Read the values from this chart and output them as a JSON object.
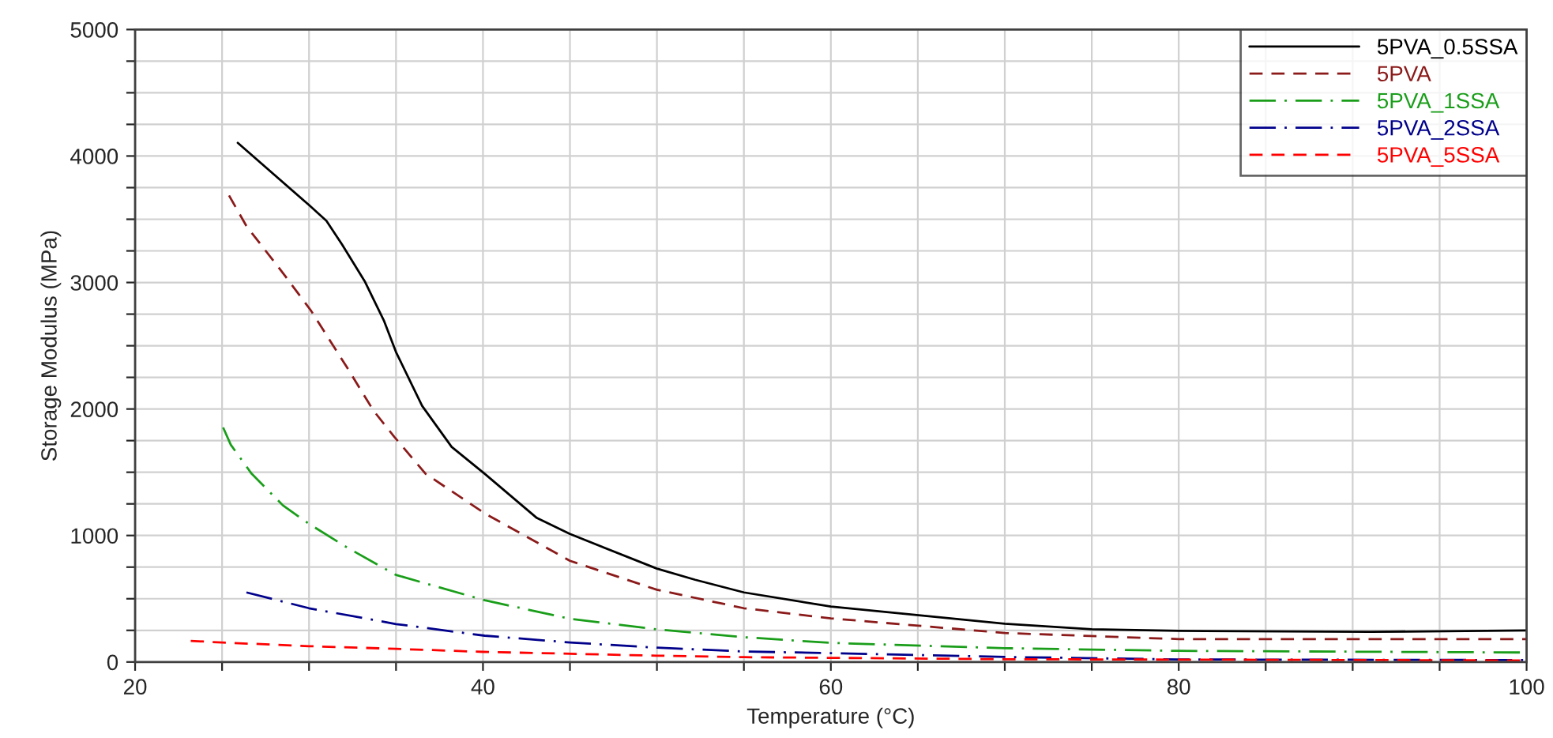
{
  "chart_data": {
    "type": "line",
    "xlabel": "Temperature (°C)",
    "ylabel": "Storage Modulus (MPa)",
    "xlim": [
      20,
      100
    ],
    "ylim": [
      0,
      5000
    ],
    "xticks": [
      20,
      {
        "value": 25,
        "label": null
      },
      {
        "value": 30,
        "label": null
      },
      {
        "value": 35,
        "label": null
      },
      40,
      {
        "value": 45,
        "label": null
      },
      {
        "value": 50,
        "label": null
      },
      {
        "value": 55,
        "label": null
      },
      60,
      {
        "value": 65,
        "label": null
      },
      {
        "value": 70,
        "label": null
      },
      {
        "value": 75,
        "label": null
      },
      80,
      {
        "value": 85,
        "label": null
      },
      {
        "value": 90,
        "label": null
      },
      {
        "value": 95,
        "label": null
      },
      100
    ],
    "yticks": [
      0,
      {
        "value": 250,
        "label": null
      },
      {
        "value": 500,
        "label": null
      },
      {
        "value": 750,
        "label": null
      },
      1000,
      {
        "value": 1250,
        "label": null
      },
      {
        "value": 1500,
        "label": null
      },
      {
        "value": 1750,
        "label": null
      },
      2000,
      {
        "value": 2250,
        "label": null
      },
      {
        "value": 2500,
        "label": null
      },
      {
        "value": 2750,
        "label": null
      },
      3000,
      {
        "value": 3250,
        "label": null
      },
      {
        "value": 3500,
        "label": null
      },
      {
        "value": 3750,
        "label": null
      },
      4000,
      {
        "value": 4250,
        "label": null
      },
      {
        "value": 4500,
        "label": null
      },
      {
        "value": 4750,
        "label": null
      },
      5000
    ],
    "grid": true,
    "legend": "top right",
    "marker": "none",
    "series": [
      {
        "name": "5PVA_0.5SSA",
        "color": "#000000",
        "line_style": "solid",
        "x": [
          25.9,
          30,
          31,
          31.9,
          33.2,
          34.3,
          35,
          36.5,
          38.2,
          40.1,
          43.1,
          45,
          50,
          52.2,
          55,
          60,
          70,
          75,
          80,
          91,
          100
        ],
        "values": [
          4104,
          3612,
          3488,
          3300,
          3010,
          2700,
          2450,
          2025,
          1700,
          1488,
          1138,
          1012,
          738,
          650,
          550,
          438,
          302,
          259,
          246,
          238,
          250
        ]
      },
      {
        "name": "5PVA",
        "color": "#8b1a1a",
        "line_style": "dashed",
        "x": [
          25.4,
          26.4,
          28.5,
          30.1,
          32.2,
          33.7,
          34.9,
          36.7,
          40.1,
          45,
          50,
          55,
          60,
          70,
          80,
          100
        ],
        "values": [
          3688,
          3446,
          3075,
          2780,
          2325,
          1988,
          1780,
          1488,
          1175,
          800,
          571,
          425,
          345,
          229,
          181,
          181
        ]
      },
      {
        "name": "5PVA_1SSA",
        "color": "#1a9e1a",
        "line_style": "dashdot",
        "x": [
          25.06,
          25.5,
          26.7,
          28.5,
          30,
          32.2,
          35,
          40.1,
          45,
          50,
          55,
          60,
          70,
          80,
          100
        ],
        "values": [
          1854,
          1717,
          1488,
          1238,
          1092,
          904,
          688,
          488,
          342,
          258,
          196,
          151,
          109,
          88,
          75
        ]
      },
      {
        "name": "5PVA_2SSA",
        "color": "#00008b",
        "line_style": "dashdot",
        "x": [
          26.4,
          30,
          35,
          40.1,
          45,
          50,
          55,
          60,
          70,
          80,
          100
        ],
        "values": [
          550,
          425,
          300,
          208,
          154,
          113,
          83,
          70,
          40,
          20,
          15
        ]
      },
      {
        "name": "5PVA_5SSA",
        "color": "#ff0000",
        "line_style": "dashed",
        "x": [
          23.2,
          25,
          30,
          35,
          40,
          50,
          55,
          70,
          100
        ],
        "values": [
          167,
          154,
          125,
          104,
          80,
          50,
          38,
          22,
          12
        ]
      }
    ]
  }
}
